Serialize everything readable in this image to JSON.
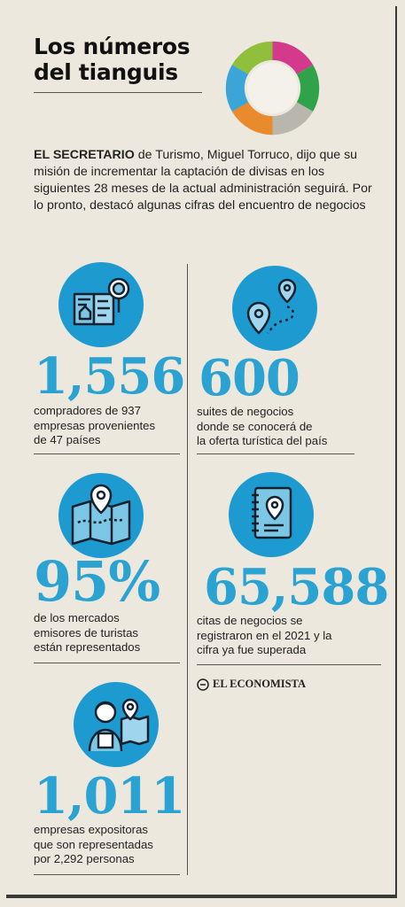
{
  "header": {
    "title_line1": "Los números",
    "title_line2": "del tianguis"
  },
  "intro": {
    "lead": "EL SECRETARIO",
    "text": " de Turismo, Miguel Torruco, dijo que su misión de incrementar la captación de divisas en los siguientes 28 meses de la actual administración seguirá. Por lo pronto, destacó algunas cifras del encuentro de negocios"
  },
  "stats": [
    {
      "value": "1,556",
      "description": "compradores de 937\nempresas provenientes\nde 47 países",
      "icon": "brochure-location-icon"
    },
    {
      "value": "600",
      "description": "suites de negocios\ndonde se conocerá de\nla oferta turística del país",
      "icon": "route-pins-icon"
    },
    {
      "value": "95%",
      "description": "de los mercados\nemisores de turistas\nestán representados",
      "icon": "map-pin-icon"
    },
    {
      "value": "65,588",
      "description": "citas de negocios se\nregistraron en el 2021 y la\ncifra ya fue superada",
      "icon": "notebook-pin-icon"
    },
    {
      "value": "1,011",
      "description": "empresas expositoras\nque son representadas\npor 2,292 personas",
      "icon": "person-map-icon"
    }
  ],
  "source": {
    "logo_text": "EL ECONOMISTA"
  },
  "colors": {
    "accent": "#2aa3d2",
    "icon_bg": "#1d9bd1",
    "background": "#ede8dd"
  }
}
